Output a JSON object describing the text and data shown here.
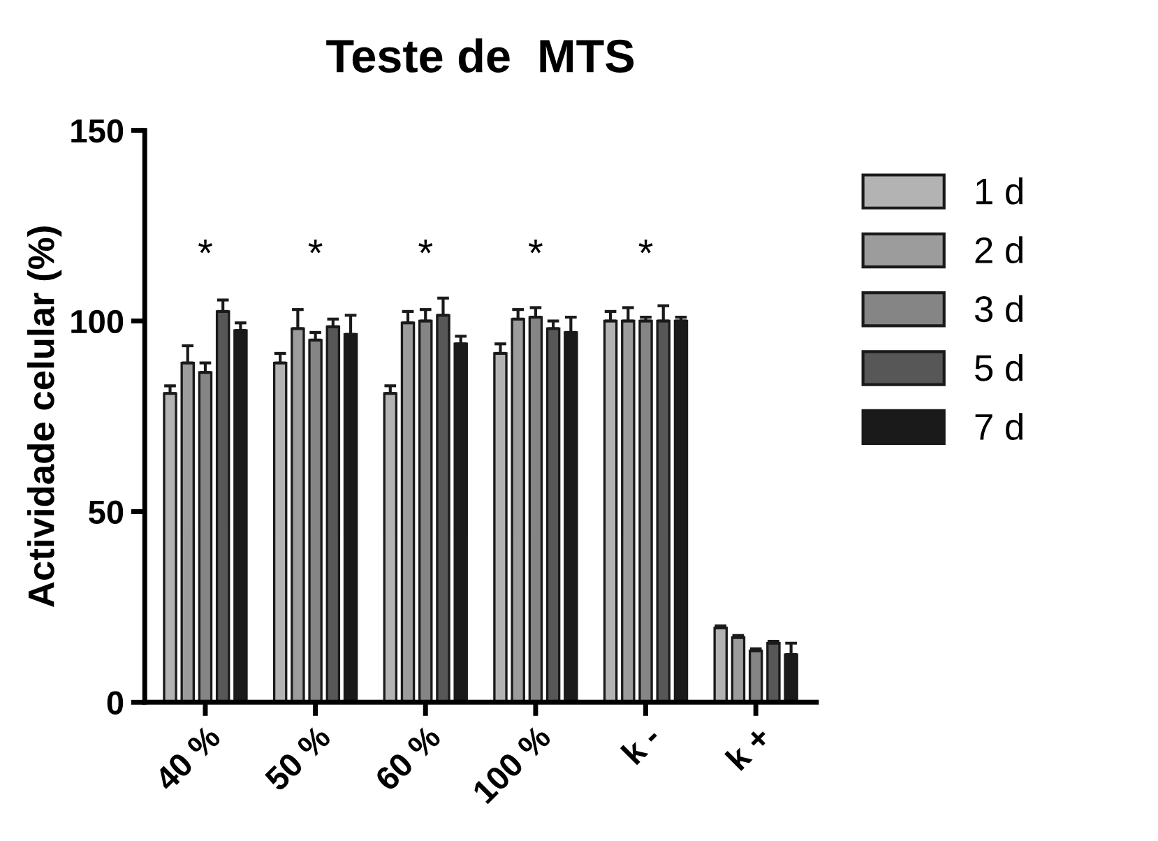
{
  "chart_data": {
    "type": "bar",
    "title": "Teste de  MTS",
    "ylabel": "Actividade celular (%)",
    "categories": [
      "40 %",
      "50 %",
      "60 %",
      "100 %",
      "k -",
      "k +"
    ],
    "series": [
      {
        "name": "1 d",
        "color": "#b3b3b3",
        "values": [
          81,
          89,
          81,
          91.5,
          100,
          19.5
        ],
        "errors": [
          2,
          2.5,
          2,
          2.5,
          2.5,
          0.5
        ]
      },
      {
        "name": "2 d",
        "color": "#9c9c9c",
        "values": [
          89,
          98,
          99.5,
          100.5,
          100,
          17
        ],
        "errors": [
          4.5,
          5,
          3,
          2.5,
          3.5,
          0.5
        ]
      },
      {
        "name": "3 d",
        "color": "#858585",
        "values": [
          86.5,
          95,
          100,
          101,
          100,
          13.5
        ],
        "errors": [
          2.5,
          2,
          3,
          2.5,
          1,
          0.5
        ]
      },
      {
        "name": "5 d",
        "color": "#575757",
        "values": [
          102.5,
          98.5,
          101.5,
          98,
          100,
          15.5
        ],
        "errors": [
          3,
          2,
          4.5,
          2,
          4,
          0.5
        ]
      },
      {
        "name": "7 d",
        "color": "#1a1a1a",
        "values": [
          97.5,
          96.5,
          94,
          97,
          100,
          12.5
        ],
        "errors": [
          2,
          5,
          2,
          4,
          1,
          3
        ]
      }
    ],
    "ylim": [
      0,
      150
    ],
    "yticks": [
      0,
      50,
      100,
      150
    ],
    "grid": false,
    "legend": "right",
    "annotations": [
      "*",
      "*",
      "*",
      "*",
      "*"
    ]
  }
}
